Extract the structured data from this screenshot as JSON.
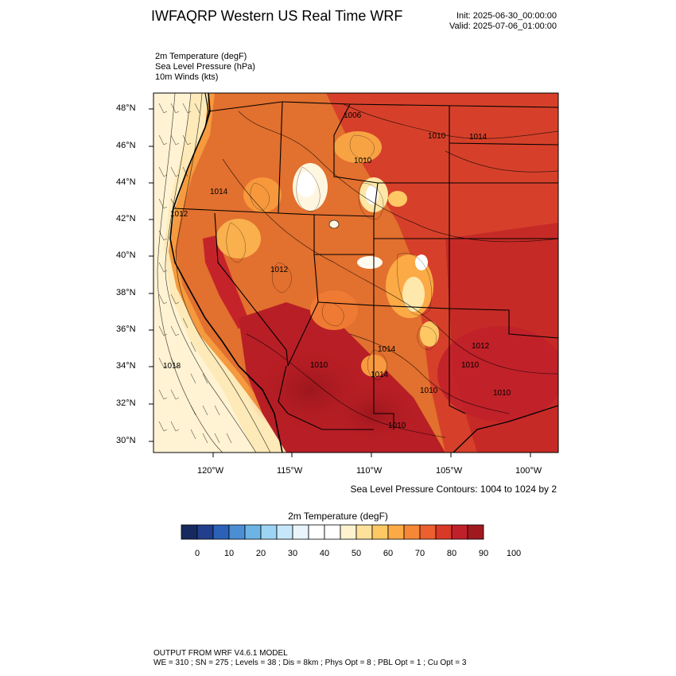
{
  "header": {
    "title": "IWFAQRP Western US Real Time WRF",
    "init": "Init: 2025-06-30_00:00:00",
    "valid": "Valid: 2025-07-06_01:00:00"
  },
  "fields": [
    "2m Temperature   (degF)",
    "Sea Level Pressure   (hPa)",
    "10m Winds   (kts)"
  ],
  "axes": {
    "lat_labels": [
      "48°N",
      "46°N",
      "44°N",
      "42°N",
      "40°N",
      "38°N",
      "36°N",
      "34°N",
      "32°N",
      "30°N"
    ],
    "lon_labels": [
      "120°W",
      "115°W",
      "110°W",
      "105°W",
      "100°W"
    ]
  },
  "pressure_labels": [
    "1006",
    "1010",
    "1014",
    "1012",
    "1014",
    "1010",
    "1012",
    "1018",
    "1014",
    "1014",
    "1010",
    "1012",
    "1010",
    "1010",
    "1010",
    "1010"
  ],
  "contour_note": "Sea Level Pressure Contours: 1004 to 1024 by 2",
  "colorbar": {
    "title": "2m Temperature  (degF)",
    "colors": [
      "#172a5f",
      "#213f8d",
      "#2b62b8",
      "#4a8fd3",
      "#6db4e6",
      "#9dd4f3",
      "#c5e7f9",
      "#e8f5fd",
      "#ffffff",
      "#ffffff",
      "#fff3cf",
      "#fee19a",
      "#fec865",
      "#fcaa45",
      "#f68737",
      "#ec5f2e",
      "#d93927",
      "#c0202a",
      "#a0191e"
    ],
    "labels": [
      "0",
      "10",
      "20",
      "30",
      "40",
      "50",
      "60",
      "70",
      "80",
      "90",
      "100"
    ]
  },
  "footer": {
    "line1": "OUTPUT FROM WRF V4.6.1 MODEL",
    "line2": "WE = 310 ; SN = 275 ; Levels = 38 ; Dis = 8km ; Phys Opt = 8 ; PBL Opt = 1 ; Cu Opt = 3"
  }
}
